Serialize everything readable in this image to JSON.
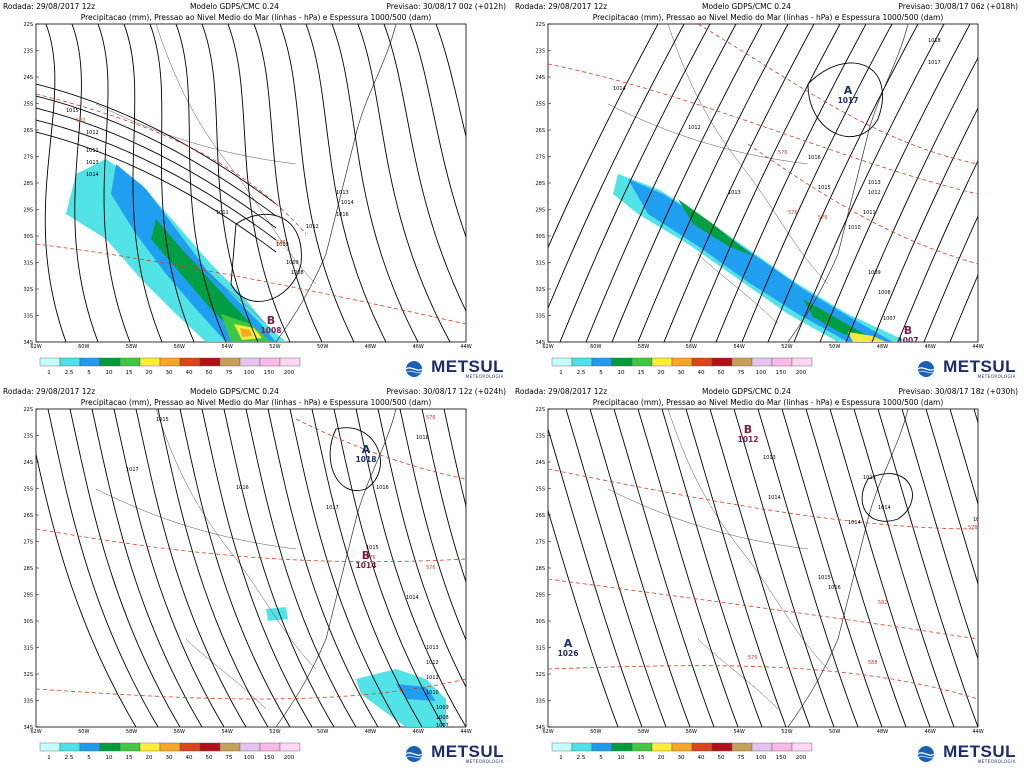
{
  "colors": {
    "scale": [
      "#c6ffff",
      "#49e2e6",
      "#1e9bf0",
      "#009e3a",
      "#40c840",
      "#ffee33",
      "#f5a623",
      "#e0421e",
      "#b3101a",
      "#c8a05a",
      "#e3c4f0",
      "#f8b9e7",
      "#ffd7f5"
    ],
    "isobar": "#000000",
    "thickness": "#d04020",
    "low_label": "#7a1c4a",
    "high_label": "#1a2c6e"
  },
  "scale_labels": [
    "1",
    "2.5",
    "5",
    "10",
    "15",
    "20",
    "30",
    "40",
    "50",
    "75",
    "100",
    "150",
    "200"
  ],
  "lat_labels": [
    "22S",
    "23S",
    "24S",
    "25S",
    "26S",
    "27S",
    "28S",
    "29S",
    "30S",
    "31S",
    "32S",
    "33S",
    "34S"
  ],
  "lon_labels": [
    "62W",
    "60W",
    "58W",
    "56W",
    "54W",
    "52W",
    "50W",
    "48W",
    "46W",
    "44W"
  ],
  "brand": {
    "name": "METSUL",
    "sub": "METEOROLOGIA"
  },
  "panels": [
    {
      "rodada": "Rodada: 29/08/2017 12z",
      "modelo": "Modelo GDPS/CMC 0.24",
      "previsao": "Previsao: 30/08/17 00z (+012h)",
      "subtitle": "Precipitacao (mm), Pressao ao Nivel Medio do Mar (linhas - hPa) e Espessura 1000/500 (dam)",
      "centers": [
        {
          "letter": "B",
          "value": "1008",
          "type": "low"
        }
      ],
      "isobar_labels": [
        "1015",
        "1012",
        "1011",
        "1013",
        "1014",
        "1011",
        "1010",
        "1009",
        "1008",
        "1012",
        "1013",
        "1014",
        "1016"
      ],
      "thickness_labels": [
        "582",
        "576"
      ]
    },
    {
      "rodada": "Rodada: 29/08/2017 12z",
      "modelo": "Modelo GDPS/CMC 0.24",
      "previsao": "Previsao: 30/08/17 06z (+018h)",
      "subtitle": "Precipitacao (mm), Pressao ao Nivel Medio do Mar (linhas - hPa) e Espessura 1000/500 (dam)",
      "centers": [
        {
          "letter": "A",
          "value": "1017",
          "type": "high"
        },
        {
          "letter": "B",
          "value": "1007",
          "type": "low"
        }
      ],
      "isobar_labels": [
        "1014",
        "1012",
        "1013",
        "1016",
        "1015",
        "1013",
        "1012",
        "1011",
        "1010",
        "1009",
        "1008",
        "1007",
        "1018",
        "1017"
      ],
      "thickness_labels": [
        "576",
        "576",
        "576"
      ]
    },
    {
      "rodada": "Rodada: 29/08/2017 12z",
      "modelo": "Modelo GDPS/CMC 0.24",
      "previsao": "Previsao: 30/08/17 12z (+024h)",
      "subtitle": "Precipitacao (mm), Pressao ao Nivel Medio do Mar (linhas - hPa) e Espessura 1000/500 (dam)",
      "centers": [
        {
          "letter": "A",
          "value": "1018",
          "type": "high"
        },
        {
          "letter": "B",
          "value": "1014",
          "type": "low"
        }
      ],
      "isobar_labels": [
        "1015",
        "1017",
        "1016",
        "1018",
        "1017",
        "1016",
        "1015",
        "1014",
        "1013",
        "1012",
        "1011",
        "1010",
        "1009",
        "1008",
        "1007"
      ],
      "thickness_labels": [
        "576",
        "576",
        "576"
      ]
    },
    {
      "rodada": "Rodada: 29/08/2017 12z",
      "modelo": "Modelo GDPS/CMC 0.24",
      "previsao": "Previsao: 30/08/17 18z (+030h)",
      "subtitle": "Precipitacao (mm), Pressao ao Nivel Medio do Mar (linhas - hPa) e Espessura 1000/500 (dam)",
      "centers": [
        {
          "letter": "B",
          "value": "1012",
          "type": "low"
        },
        {
          "letter": "A",
          "value": "1026",
          "type": "high"
        }
      ],
      "isobar_labels": [
        "1013",
        "1014",
        "1013",
        "1014",
        "1014",
        "1015",
        "1016",
        "1014"
      ],
      "thickness_labels": [
        "576",
        "582",
        "588",
        "576"
      ]
    }
  ]
}
